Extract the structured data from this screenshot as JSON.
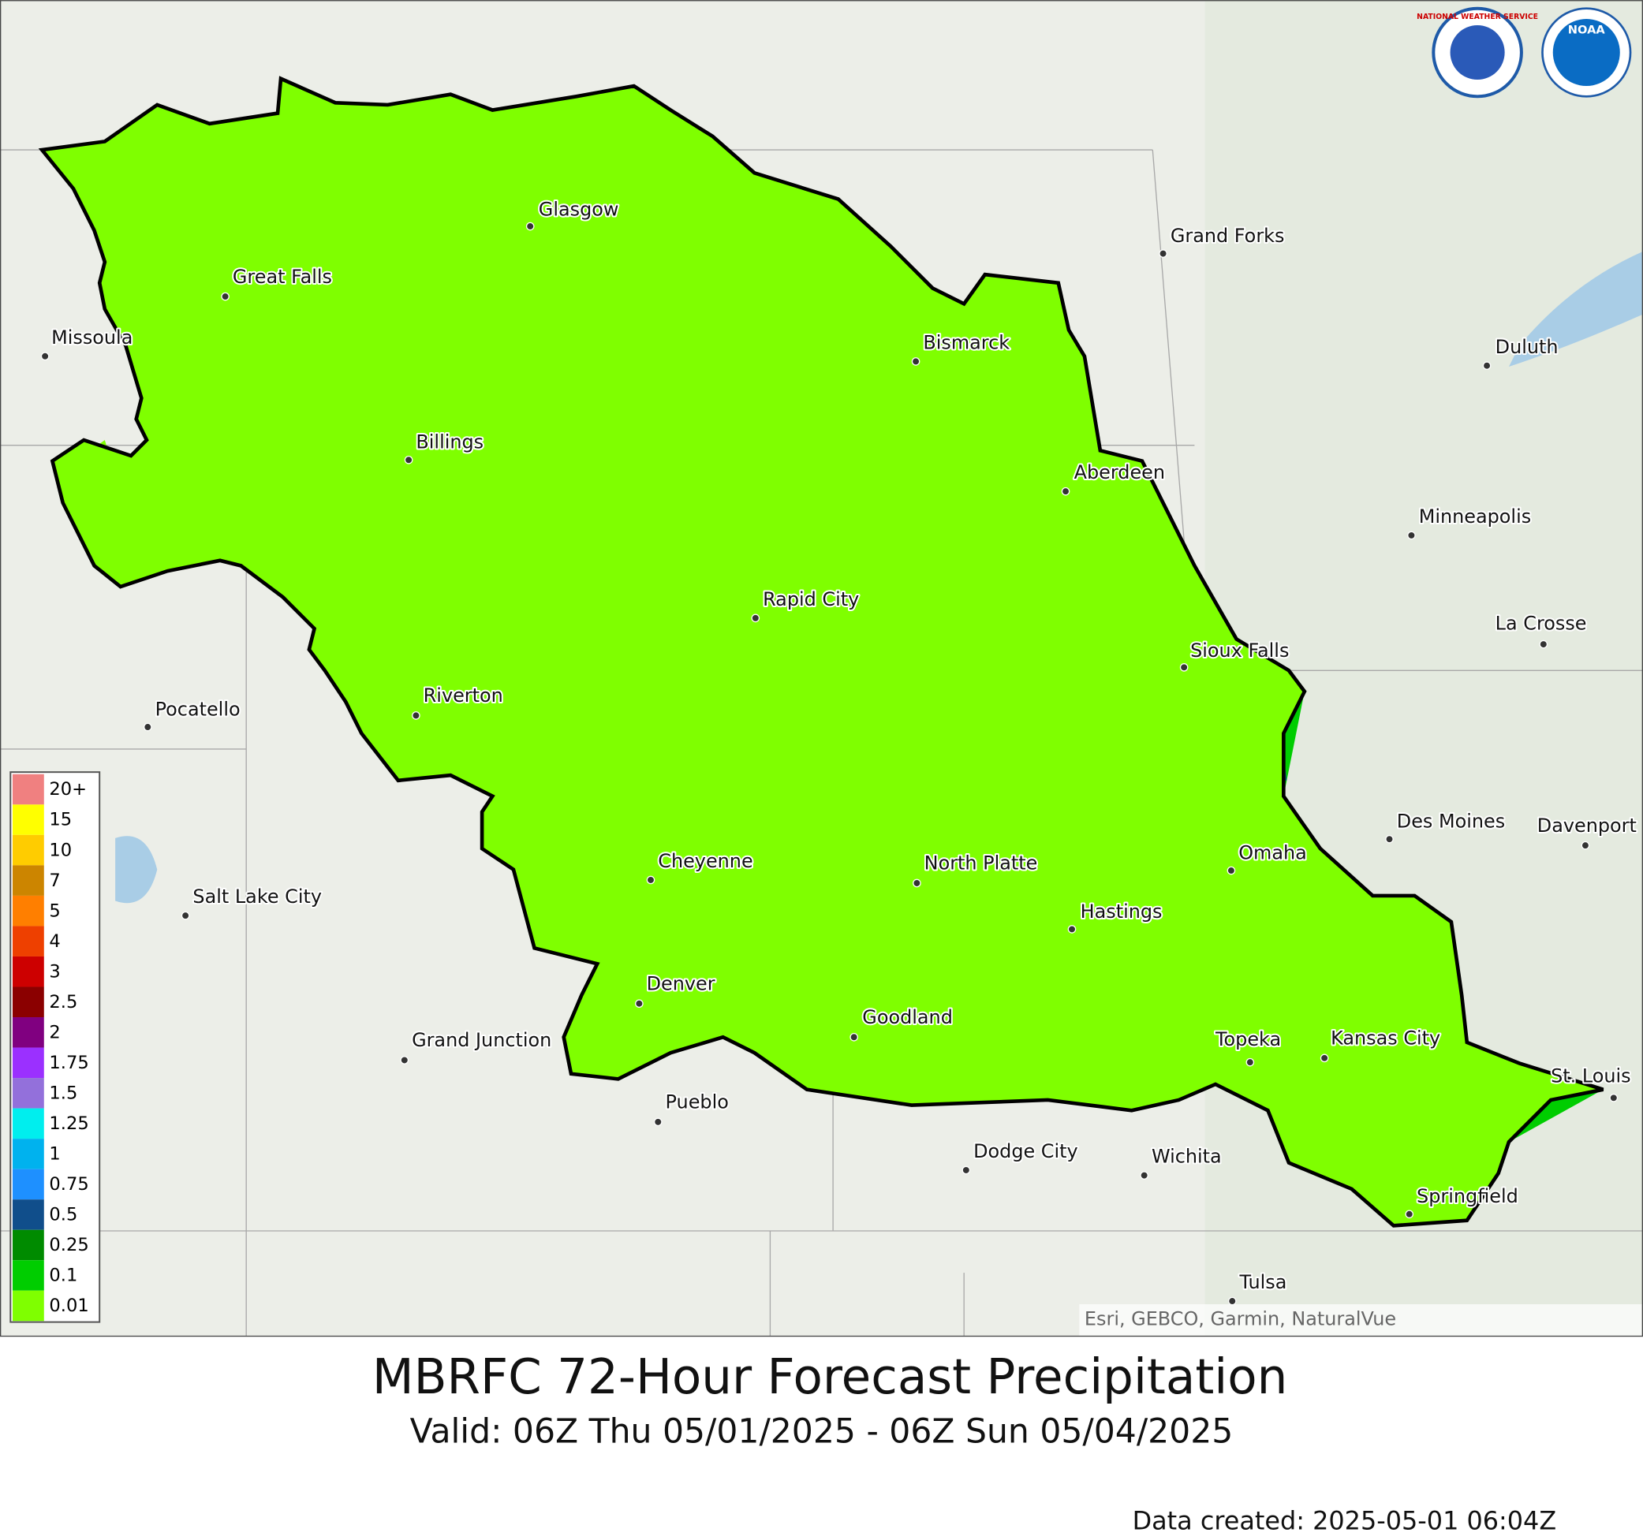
{
  "header": {
    "title": "MBRFC 72-Hour Forecast Precipitation",
    "subtitle": "Valid: 06Z Thu 05/01/2025 - 06Z Sun 05/04/2025",
    "data_created": "Data created: 2025-05-01 06:04Z"
  },
  "logos": {
    "nws": "NATIONAL WEATHER SERVICE",
    "noaa": "NOAA"
  },
  "map": {
    "attribution": "Esri, GEBCO, Garmin, NaturalVue",
    "cities": [
      "Glasgow",
      "Great Falls",
      "Missoula",
      "Bismarck",
      "Grand Forks",
      "Duluth",
      "Billings",
      "Aberdeen",
      "Minneapolis",
      "Rapid City",
      "La Crosse",
      "Sioux Falls",
      "Riverton",
      "Pocatello",
      "Des Moines",
      "Davenport",
      "Omaha",
      "Cheyenne",
      "North Platte",
      "Salt Lake City",
      "Hastings",
      "Denver",
      "Goodland",
      "Grand Junction",
      "Topeka",
      "Kansas City",
      "St. Louis",
      "Pueblo",
      "Dodge City",
      "Wichita",
      "Springfield",
      "Tulsa"
    ]
  },
  "legend": {
    "items": [
      {
        "label": "20+",
        "color": "#f08080"
      },
      {
        "label": "15",
        "color": "#ffff00"
      },
      {
        "label": "10",
        "color": "#ffcc00"
      },
      {
        "label": "7",
        "color": "#cc8500"
      },
      {
        "label": "5",
        "color": "#ff7f00"
      },
      {
        "label": "4",
        "color": "#ee4000"
      },
      {
        "label": "3",
        "color": "#cd0000"
      },
      {
        "label": "2.5",
        "color": "#8b0000"
      },
      {
        "label": "2",
        "color": "#800080"
      },
      {
        "label": "1.75",
        "color": "#9b30ff"
      },
      {
        "label": "1.5",
        "color": "#9370db"
      },
      {
        "label": "1.25",
        "color": "#00eeee"
      },
      {
        "label": "1",
        "color": "#00b2ee"
      },
      {
        "label": "0.75",
        "color": "#1e90ff"
      },
      {
        "label": "0.5",
        "color": "#104e8b"
      },
      {
        "label": "0.25",
        "color": "#008b00"
      },
      {
        "label": "0.1",
        "color": "#00cd00"
      },
      {
        "label": "0.01",
        "color": "#7fff00"
      }
    ]
  }
}
